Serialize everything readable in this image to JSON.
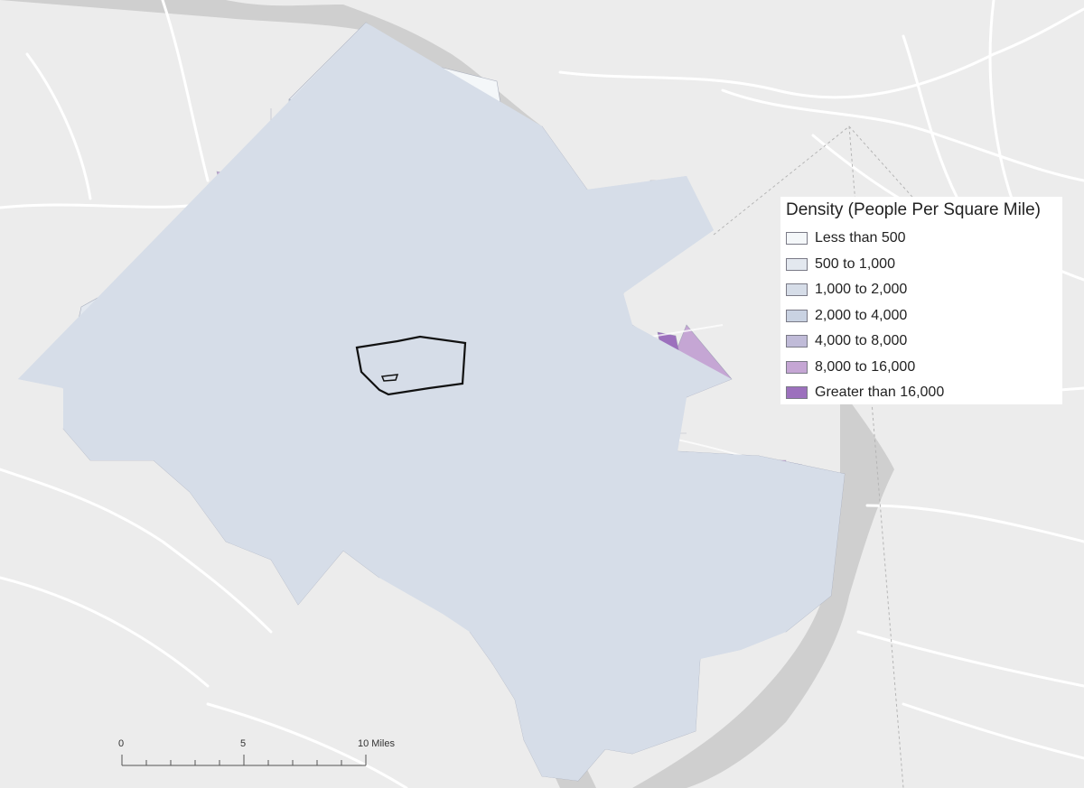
{
  "legend": {
    "title": "Density (People Per Square Mile)",
    "classes": [
      {
        "label": "Less than 500",
        "color": "#f4f7f9"
      },
      {
        "label": "500 to 1,000",
        "color": "#e3e8ef"
      },
      {
        "label": "1,000 to 2,000",
        "color": "#d6dde8"
      },
      {
        "label": "2,000 to 4,000",
        "color": "#c9d2e2"
      },
      {
        "label": "4,000 to 8,000",
        "color": "#c0bbd8"
      },
      {
        "label": "8,000 to 16,000",
        "color": "#c5a6d4"
      },
      {
        "label": "Greater than 16,000",
        "color": "#9c70bd"
      }
    ]
  },
  "scale_bar": {
    "labels": [
      "0",
      "5",
      "10 Miles"
    ]
  },
  "colors": {
    "basemap": "#ececec",
    "roads": "#ffffff",
    "water": "#c9c9c9",
    "boundary": "#111111"
  }
}
